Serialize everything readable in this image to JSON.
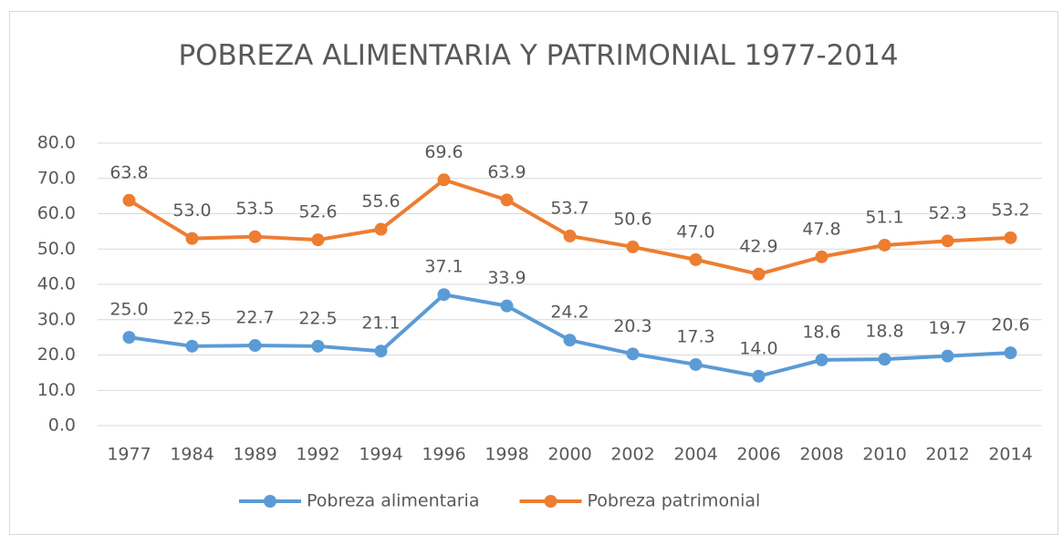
{
  "chart_data": {
    "type": "line",
    "title": "POBREZA ALIMENTARIA Y PATRIMONIAL 1977-2014",
    "categories": [
      "1977",
      "1984",
      "1989",
      "1992",
      "1994",
      "1996",
      "1998",
      "2000",
      "2002",
      "2004",
      "2006",
      "2008",
      "2010",
      "2012",
      "2014"
    ],
    "series": [
      {
        "name": "Pobreza alimentaria",
        "color": "#5b9bd5",
        "values": [
          25.0,
          22.5,
          22.7,
          22.5,
          21.1,
          37.1,
          33.9,
          24.2,
          20.3,
          17.3,
          14.0,
          18.6,
          18.8,
          19.7,
          20.6
        ],
        "value_labels": [
          "25.0",
          "22.5",
          "22.7",
          "22.5",
          "21.1",
          "37.1",
          "33.9",
          "24.2",
          "20.3",
          "17.3",
          "14.0",
          "18.6",
          "18.8",
          "19.7",
          "20.6"
        ]
      },
      {
        "name": "Pobreza patrimonial",
        "color": "#ed7d31",
        "values": [
          63.8,
          53.0,
          53.5,
          52.6,
          55.6,
          69.6,
          63.9,
          53.7,
          50.6,
          47.0,
          42.9,
          47.8,
          51.1,
          52.3,
          53.2
        ],
        "value_labels": [
          "63.8",
          "53.0",
          "53.5",
          "52.6",
          "55.6",
          "69.6",
          "63.9",
          "53.7",
          "50.6",
          "47.0",
          "42.9",
          "47.8",
          "51.1",
          "52.3",
          "53.2"
        ]
      }
    ],
    "ylim": [
      0,
      80
    ],
    "yticks": [
      {
        "value": 0,
        "label": "0.0"
      },
      {
        "value": 10,
        "label": "10.0"
      },
      {
        "value": 20,
        "label": "20.0"
      },
      {
        "value": 30,
        "label": "30.0"
      },
      {
        "value": 40,
        "label": "40.0"
      },
      {
        "value": 50,
        "label": "50.0"
      },
      {
        "value": 60,
        "label": "60.0"
      },
      {
        "value": 70,
        "label": "70.0"
      },
      {
        "value": 80,
        "label": "80.0"
      }
    ],
    "grid": true,
    "legend": "bottom"
  }
}
